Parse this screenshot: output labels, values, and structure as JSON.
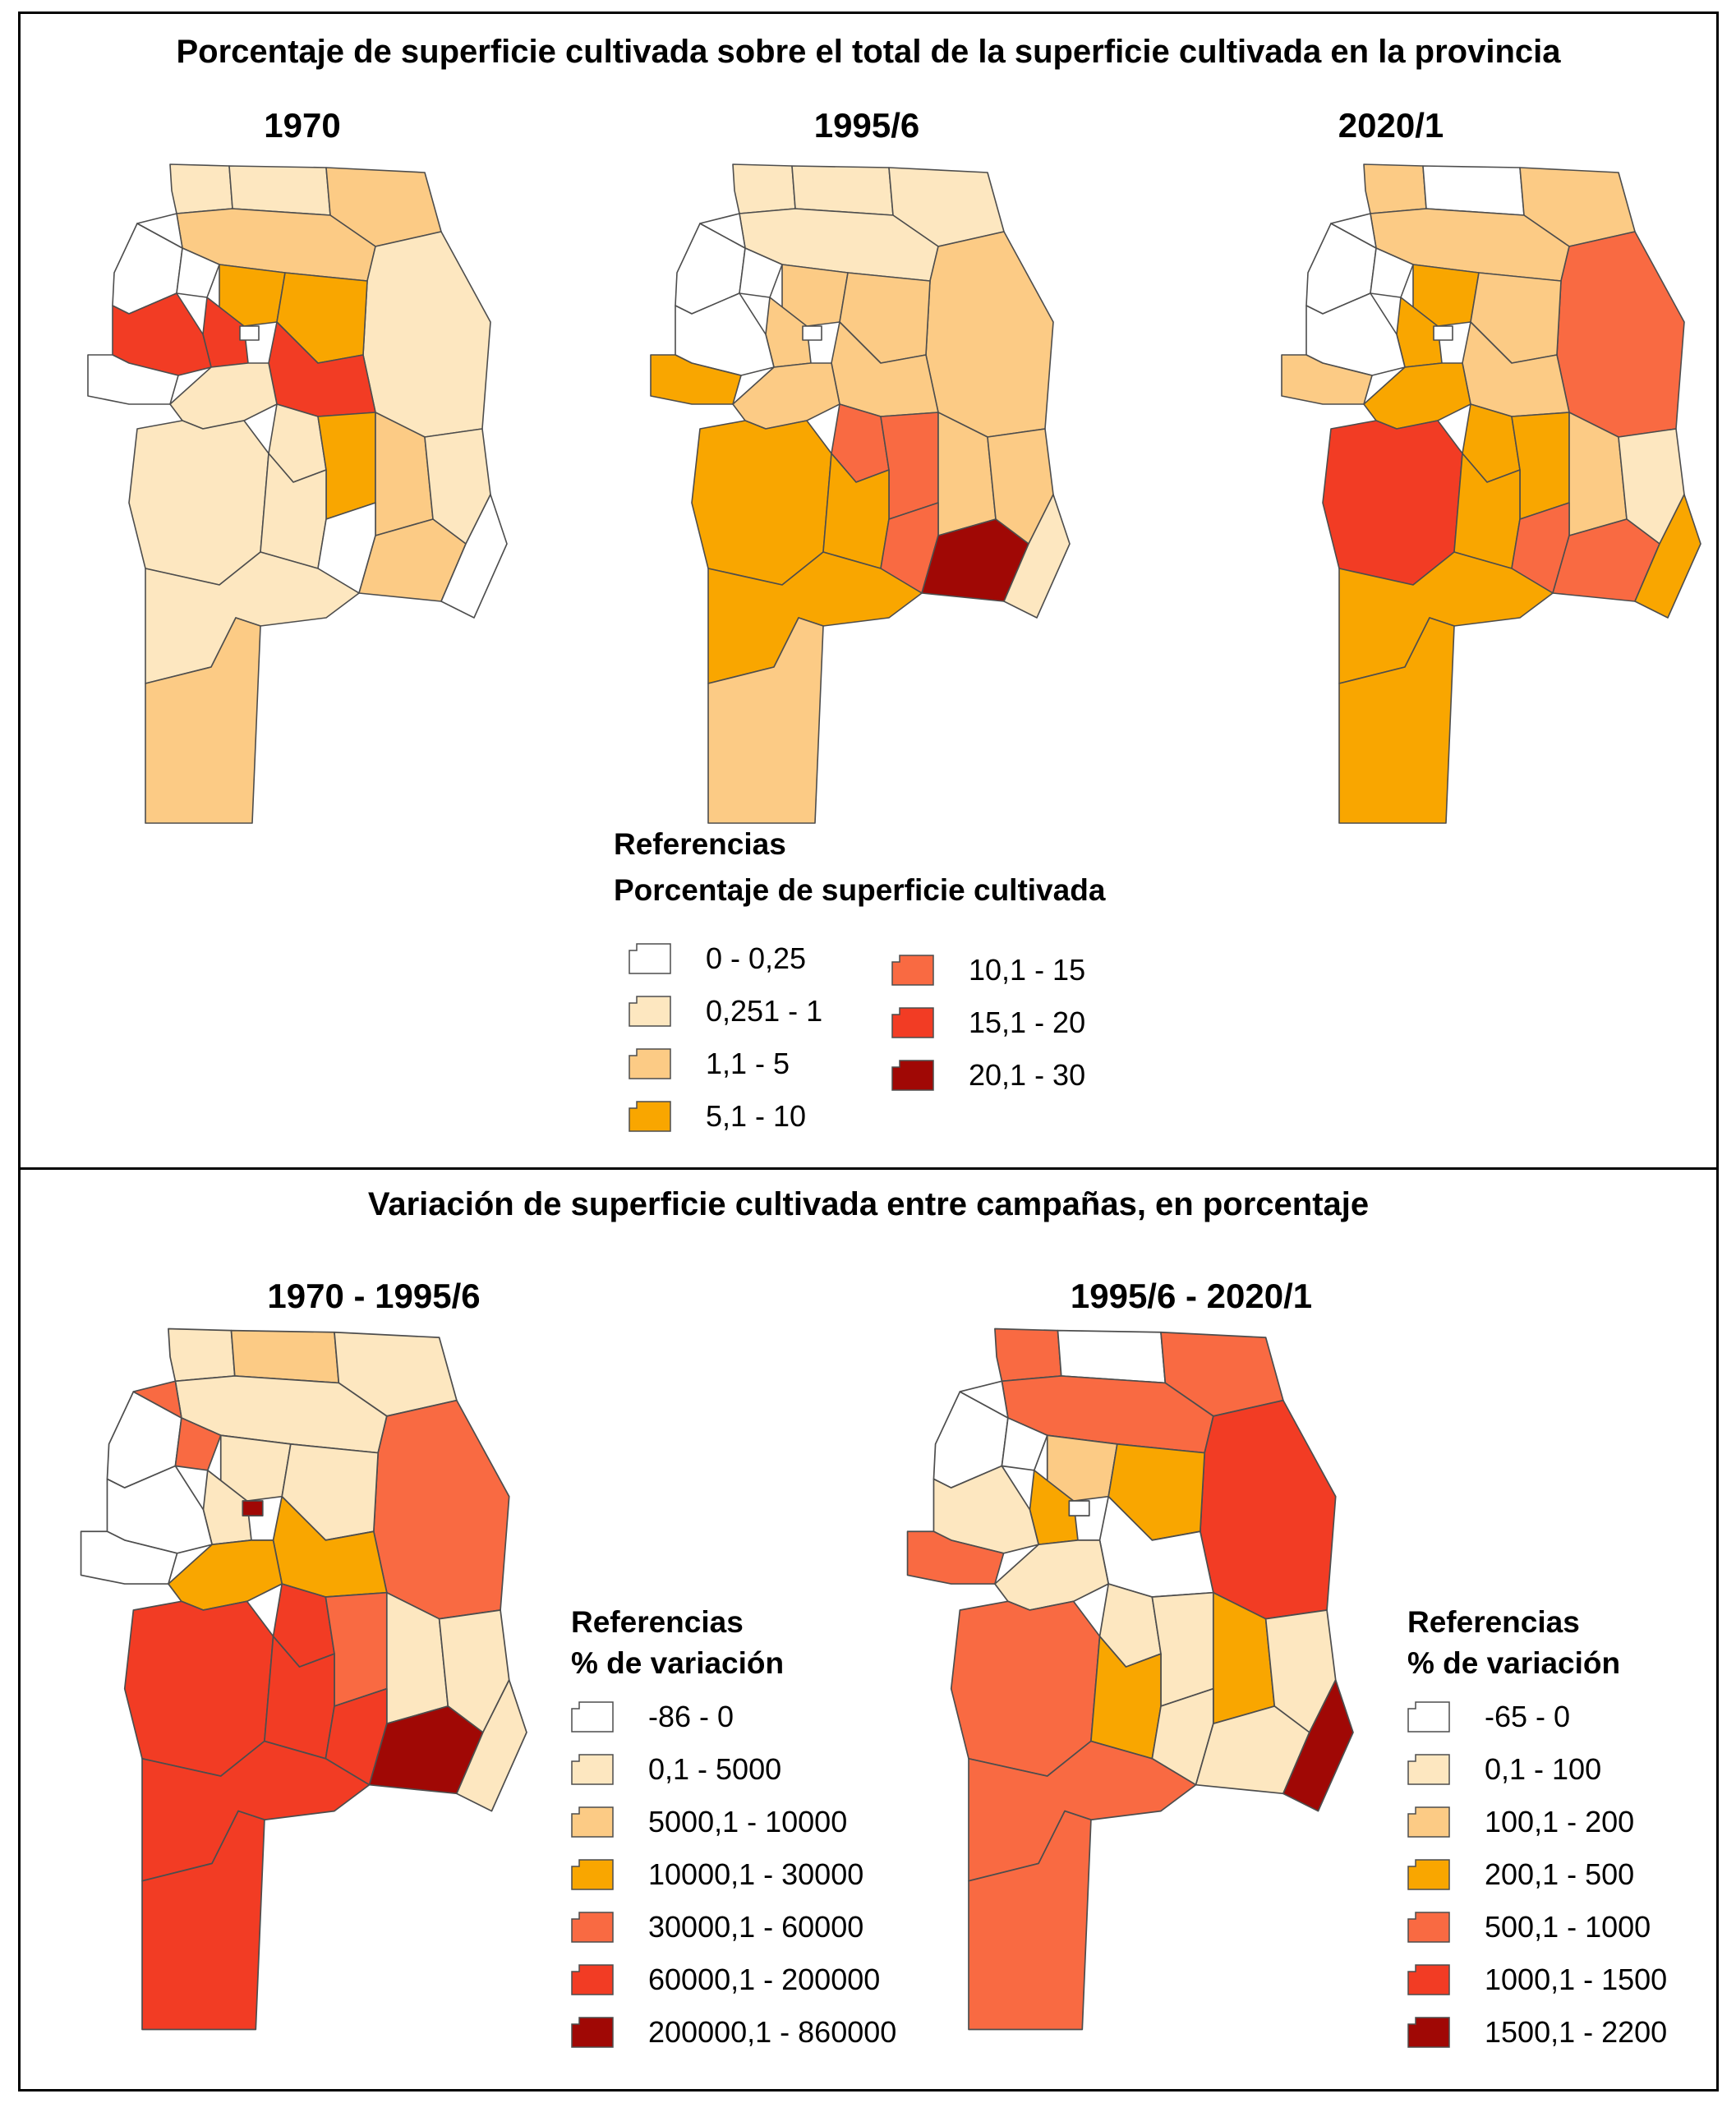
{
  "top_panel": {
    "title": "Porcentaje de superficie cultivada sobre el total de la superficie cultivada en la provincia",
    "maps": [
      {
        "title": "1970",
        "fills": [
          "c1",
          "c1",
          "c2",
          "c2",
          "c0",
          "c0",
          "c3",
          "c5",
          "c1",
          "c3",
          "c5",
          "c5",
          "c0",
          "c0",
          "c1",
          "c1",
          "c3",
          "c2",
          "c1",
          "c1",
          "c1",
          "c0",
          "c2",
          "c1",
          "c2",
          "c0"
        ]
      },
      {
        "title": "1995/6",
        "fills": [
          "c1",
          "c1",
          "c1",
          "c1",
          "c0",
          "c0",
          "c2",
          "c2",
          "c2",
          "c2",
          "c2",
          "c0",
          "c0",
          "c3",
          "c2",
          "c4",
          "c4",
          "c2",
          "c2",
          "c3",
          "c3",
          "c4",
          "c6",
          "c3",
          "c2",
          "c1"
        ]
      },
      {
        "title": "2020/1",
        "fills": [
          "c2",
          "c0",
          "c2",
          "c2",
          "c0",
          "c0",
          "c3",
          "c3",
          "c4",
          "c2",
          "c2",
          "c0",
          "c0",
          "c2",
          "c3",
          "c3",
          "c3",
          "c2",
          "c1",
          "c5",
          "c3",
          "c4",
          "c4",
          "c3",
          "c3",
          "c3"
        ]
      }
    ],
    "legend": {
      "heading": "Referencias",
      "subheading": "Porcentaje de superficie cultivada",
      "items": [
        {
          "label": "0 - 0,25",
          "color": "#ffffff"
        },
        {
          "label": "0,251 - 1",
          "color": "#fde7c0"
        },
        {
          "label": "1,1 - 5",
          "color": "#fccb85"
        },
        {
          "label": "5,1 - 10",
          "color": "#f9a600"
        },
        {
          "label": "10,1 - 15",
          "color": "#f96a42"
        },
        {
          "label": "15,1 - 20",
          "color": "#f23c24"
        },
        {
          "label": "20,1 - 30",
          "color": "#a00805"
        }
      ]
    }
  },
  "bottom_panel": {
    "title": "Variación de superficie cultivada entre campañas, en porcentaje",
    "maps": [
      {
        "title": "1970 - 1995/6",
        "fills": [
          "c1",
          "c2",
          "c1",
          "c1",
          "c0",
          "c4",
          "c1",
          "c1",
          "c4",
          "c1",
          "c3",
          "c0",
          "c6",
          "c0",
          "c3",
          "c5",
          "c4",
          "c1",
          "c1",
          "c5",
          "c5",
          "c5",
          "c6",
          "c5",
          "c5",
          "c1"
        ]
      },
      {
        "title": "1995/6 - 2020/1",
        "fills": [
          "c4",
          "c0",
          "c4",
          "c4",
          "c0",
          "c0",
          "c2",
          "c3",
          "c5",
          "c3",
          "c0",
          "c1",
          "c0",
          "c4",
          "c1",
          "c1",
          "c1",
          "c3",
          "c1",
          "c4",
          "c3",
          "c1",
          "c1",
          "c4",
          "c4",
          "c6"
        ]
      }
    ],
    "legends": [
      {
        "heading": "Referencias",
        "subheading": "% de variación",
        "items": [
          {
            "label": "-86 - 0",
            "color": "#ffffff"
          },
          {
            "label": "0,1 - 5000",
            "color": "#fde7c0"
          },
          {
            "label": "5000,1 - 10000",
            "color": "#fccb85"
          },
          {
            "label": "10000,1 - 30000",
            "color": "#f9a600"
          },
          {
            "label": "30000,1 - 60000",
            "color": "#f96a42"
          },
          {
            "label": "60000,1 - 200000",
            "color": "#f23c24"
          },
          {
            "label": "200000,1 - 860000",
            "color": "#a00805"
          }
        ]
      },
      {
        "heading": "Referencias",
        "subheading": "% de variación",
        "items": [
          {
            "label": "-65 - 0",
            "color": "#ffffff"
          },
          {
            "label": "0,1 - 100",
            "color": "#fde7c0"
          },
          {
            "label": "100,1 - 200",
            "color": "#fccb85"
          },
          {
            "label": "200,1 - 500",
            "color": "#f9a600"
          },
          {
            "label": "500,1 - 1000",
            "color": "#f96a42"
          },
          {
            "label": "1000,1 - 1500",
            "color": "#f23c24"
          },
          {
            "label": "1500,1 - 2200",
            "color": "#a00805"
          }
        ]
      }
    ]
  }
}
